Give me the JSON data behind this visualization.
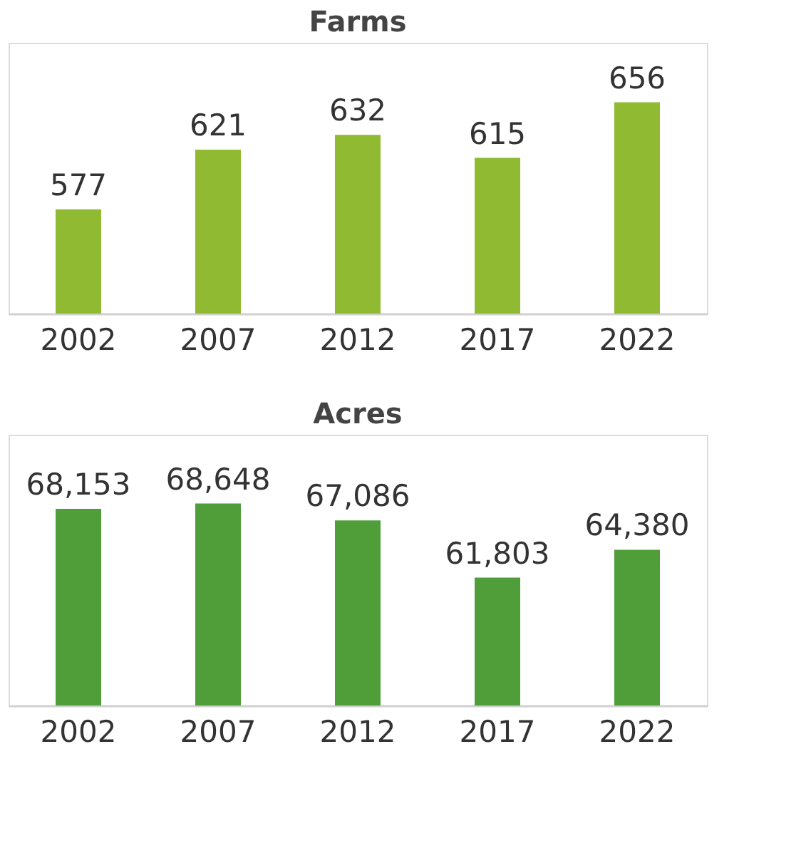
{
  "chart_data": [
    {
      "type": "bar",
      "title": "Farms",
      "categories": [
        "2002",
        "2007",
        "2012",
        "2017",
        "2022"
      ],
      "values": [
        577,
        621,
        632,
        615,
        656
      ],
      "color": "#8fba32",
      "ylim": [
        500,
        700
      ],
      "data_labels": true,
      "tick_labels": "x"
    },
    {
      "type": "bar",
      "title": "Acres",
      "categories": [
        "2002",
        "2007",
        "2012",
        "2017",
        "2022"
      ],
      "values": [
        68153,
        68648,
        67086,
        61803,
        64380
      ],
      "color": "#4f9e3a",
      "ylim": [
        50000,
        75000
      ],
      "value_labels": [
        "68,153",
        "68,648",
        "67,086",
        "61,803",
        "64,380"
      ],
      "tick_labels": "x"
    }
  ]
}
